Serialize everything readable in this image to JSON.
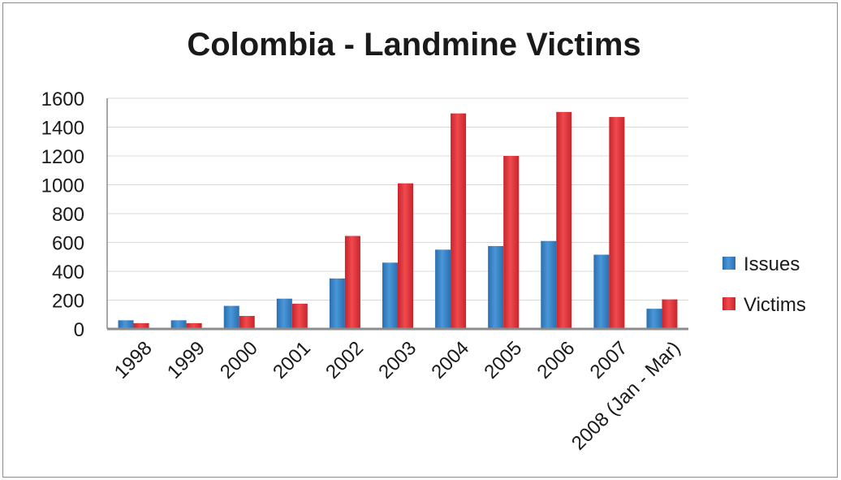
{
  "chart_data": {
    "type": "bar",
    "title": "Colombia - Landmine Victims",
    "xlabel": "",
    "ylabel": "",
    "ylim": [
      0,
      1600
    ],
    "y_ticks": [
      "0",
      "200",
      "400",
      "600",
      "800",
      "1000",
      "1200",
      "1400",
      "1600"
    ],
    "categories": [
      "1998",
      "1999",
      "2000",
      "2001",
      "2002",
      "2003",
      "2004",
      "2005",
      "2006",
      "2007",
      "2008 (Jan - Mar)"
    ],
    "series": [
      {
        "name": "Issues",
        "color": "#3b85c8",
        "values": [
          60,
          60,
          160,
          210,
          350,
          460,
          550,
          575,
          610,
          515,
          140
        ]
      },
      {
        "name": "Victims",
        "color": "#e3343a",
        "values": [
          40,
          40,
          90,
          175,
          645,
          1010,
          1495,
          1200,
          1505,
          1470,
          205
        ]
      }
    ],
    "grid": true,
    "legend": "right"
  }
}
